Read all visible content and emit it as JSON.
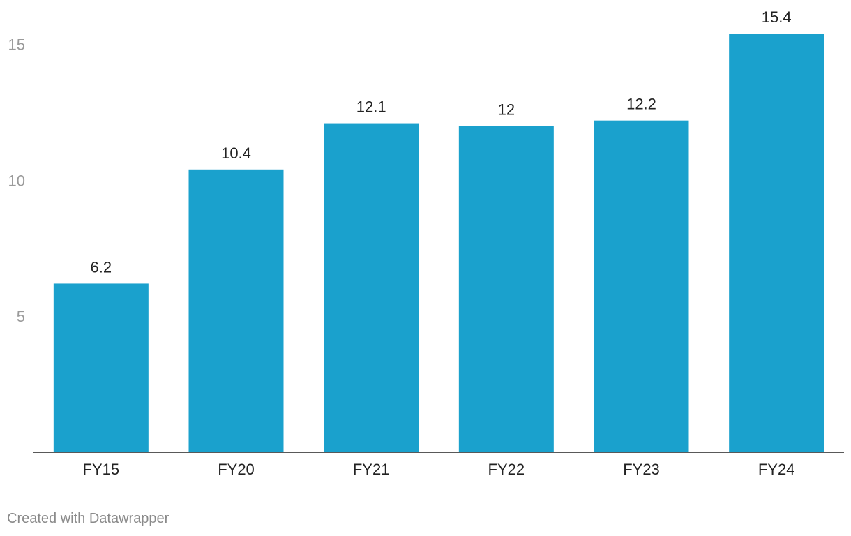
{
  "chart_data": {
    "type": "bar",
    "categories": [
      "FY15",
      "FY20",
      "FY21",
      "FY22",
      "FY23",
      "FY24"
    ],
    "values": [
      6.2,
      10.4,
      12.1,
      12,
      12.2,
      15.4
    ],
    "value_labels": [
      "6.2",
      "10.4",
      "12.1",
      "12",
      "12.2",
      "15.4"
    ],
    "yticks": [
      5,
      10,
      15
    ],
    "ylim": [
      0,
      15.4
    ],
    "grid": false,
    "title": "",
    "xlabel": "",
    "ylabel": "",
    "bar_color": "#1aa1cd",
    "axis_color": "#222222",
    "tick_label_color": "#9a9a9a",
    "label_color": "#222222"
  },
  "footer": {
    "credit": "Created with Datawrapper"
  }
}
